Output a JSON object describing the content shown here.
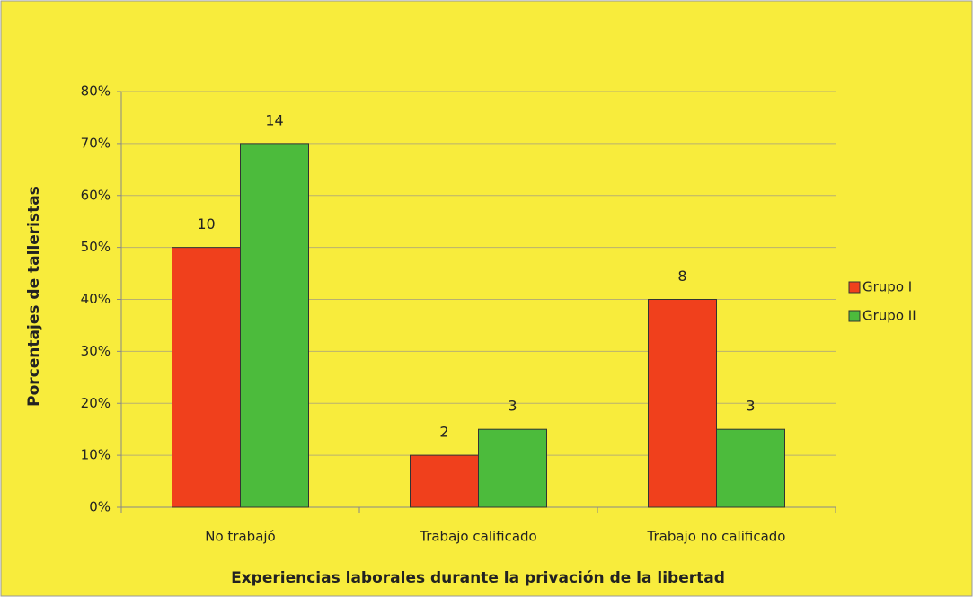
{
  "chart_data": {
    "type": "bar",
    "xlabel": "Experiencias laborales durante la privación de la libertad",
    "ylabel": "Porcentajes de talleristas",
    "categories": [
      "No trabajó",
      "Trabajo  calificado",
      "Trabajo no calificado"
    ],
    "series": [
      {
        "name": "Grupo I",
        "color": "#f0401c",
        "values": [
          50,
          10,
          40
        ],
        "counts": [
          10,
          2,
          8
        ]
      },
      {
        "name": "Grupo II",
        "color": "#4cbb3c",
        "values": [
          70,
          15,
          15
        ],
        "counts": [
          14,
          3,
          3
        ]
      }
    ],
    "ylim": [
      0,
      80
    ],
    "yticks": [
      {
        "value": 0,
        "label": "0%"
      },
      {
        "value": 10,
        "label": "10%"
      },
      {
        "value": 20,
        "label": "20%"
      },
      {
        "value": 30,
        "label": "30%"
      },
      {
        "value": 40,
        "label": "40%"
      },
      {
        "value": 50,
        "label": "50%"
      },
      {
        "value": 60,
        "label": "60%"
      },
      {
        "value": 70,
        "label": "70%"
      },
      {
        "value": 80,
        "label": "80%"
      }
    ],
    "grid": true,
    "legend": "right"
  }
}
